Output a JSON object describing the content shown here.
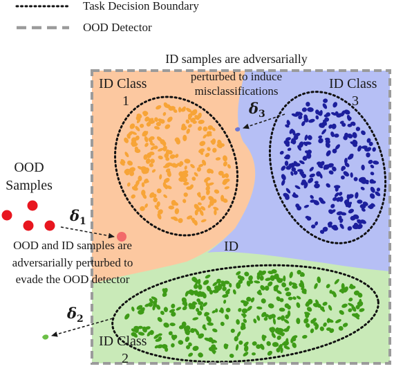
{
  "legend": {
    "boundary_label": "Task Decision Boundary",
    "detector_label": "OOD Detector"
  },
  "regions": {
    "class1": {
      "line1": "ID Class",
      "line2": "1"
    },
    "class2": {
      "line1": "ID Class",
      "line2": "2"
    },
    "class3": {
      "line1": "ID Class",
      "line2": "3"
    },
    "center": "ID"
  },
  "ood": {
    "line1": "OOD",
    "line2": "Samples"
  },
  "annotations": {
    "top_note": [
      "ID samples are adversarially",
      "perturbed to induce",
      "misclassifications"
    ],
    "left_note": [
      "OOD and ID samples are",
      "adversarially perturbed to",
      "evade the OOD detector"
    ]
  },
  "deltas": {
    "d1": {
      "symbol": "δ",
      "sub": "1"
    },
    "d2": {
      "symbol": "δ",
      "sub": "2"
    },
    "d3": {
      "symbol": "δ",
      "sub": "3"
    }
  },
  "colors": {
    "orange_region": "#fcc8a0",
    "blue_region": "#b6bff5",
    "green_region": "#c9eab8",
    "orange_points": "#f7a437",
    "blue_points": "#1c1f9c",
    "green_points": "#3e9b17",
    "ood_red": "#e8161f",
    "perturbed_pink": "#f26a6a",
    "detector_gray": "#9b9b9b"
  }
}
